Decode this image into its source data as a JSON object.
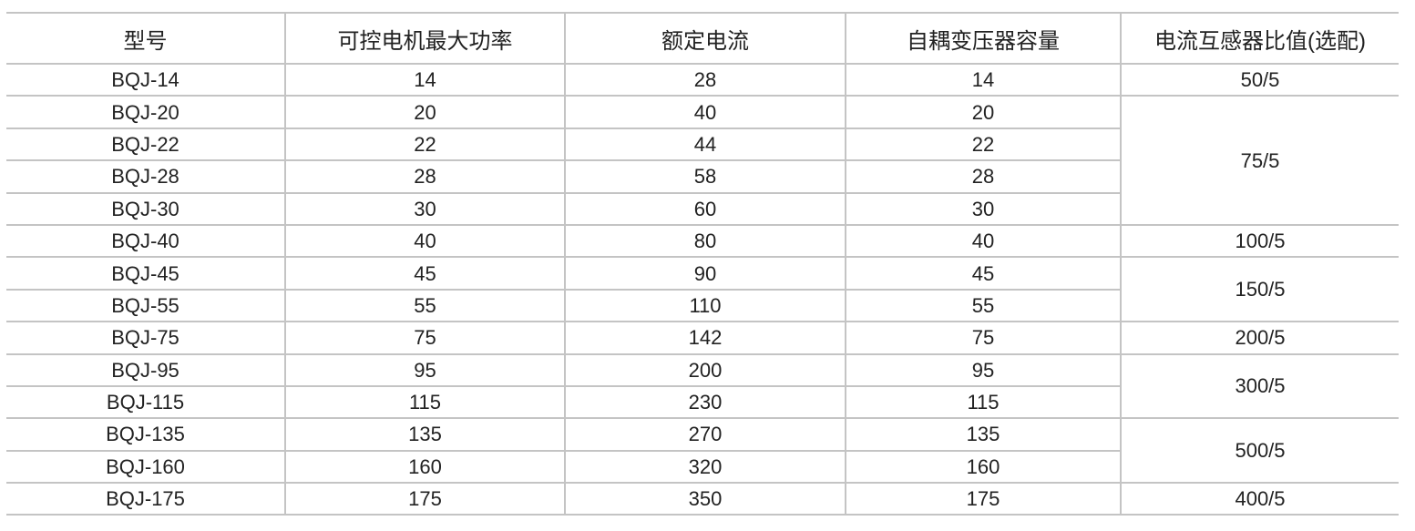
{
  "headers": [
    "型号",
    "可控电机最大功率",
    "额定电流",
    "自耦变压器容量",
    "电流互感器比值(选配)"
  ],
  "rows": [
    {
      "model": "BQJ-14",
      "power": "14",
      "current": "28",
      "capacity": "14"
    },
    {
      "model": "BQJ-20",
      "power": "20",
      "current": "40",
      "capacity": "20"
    },
    {
      "model": "BQJ-22",
      "power": "22",
      "current": "44",
      "capacity": "22"
    },
    {
      "model": "BQJ-28",
      "power": "28",
      "current": "58",
      "capacity": "28"
    },
    {
      "model": "BQJ-30",
      "power": "30",
      "current": "60",
      "capacity": "30"
    },
    {
      "model": "BQJ-40",
      "power": "40",
      "current": "80",
      "capacity": "40"
    },
    {
      "model": "BQJ-45",
      "power": "45",
      "current": "90",
      "capacity": "45"
    },
    {
      "model": "BQJ-55",
      "power": "55",
      "current": "110",
      "capacity": "55"
    },
    {
      "model": "BQJ-75",
      "power": "75",
      "current": "142",
      "capacity": "75"
    },
    {
      "model": "BQJ-95",
      "power": "95",
      "current": "200",
      "capacity": "95"
    },
    {
      "model": "BQJ-115",
      "power": "115",
      "current": "230",
      "capacity": "115"
    },
    {
      "model": "BQJ-135",
      "power": "135",
      "current": "270",
      "capacity": "135"
    },
    {
      "model": "BQJ-160",
      "power": "160",
      "current": "320",
      "capacity": "160"
    },
    {
      "model": "BQJ-175",
      "power": "175",
      "current": "350",
      "capacity": "175"
    }
  ],
  "ct_ratios": [
    {
      "value": "50/5",
      "start": 0,
      "span": 1
    },
    {
      "value": "75/5",
      "start": 1,
      "span": 4
    },
    {
      "value": "100/5",
      "start": 5,
      "span": 1
    },
    {
      "value": "150/5",
      "start": 6,
      "span": 2
    },
    {
      "value": "200/5",
      "start": 8,
      "span": 1
    },
    {
      "value": "300/5",
      "start": 9,
      "span": 2
    },
    {
      "value": "500/5",
      "start": 11,
      "span": 2
    },
    {
      "value": "400/5",
      "start": 13,
      "span": 1
    }
  ]
}
